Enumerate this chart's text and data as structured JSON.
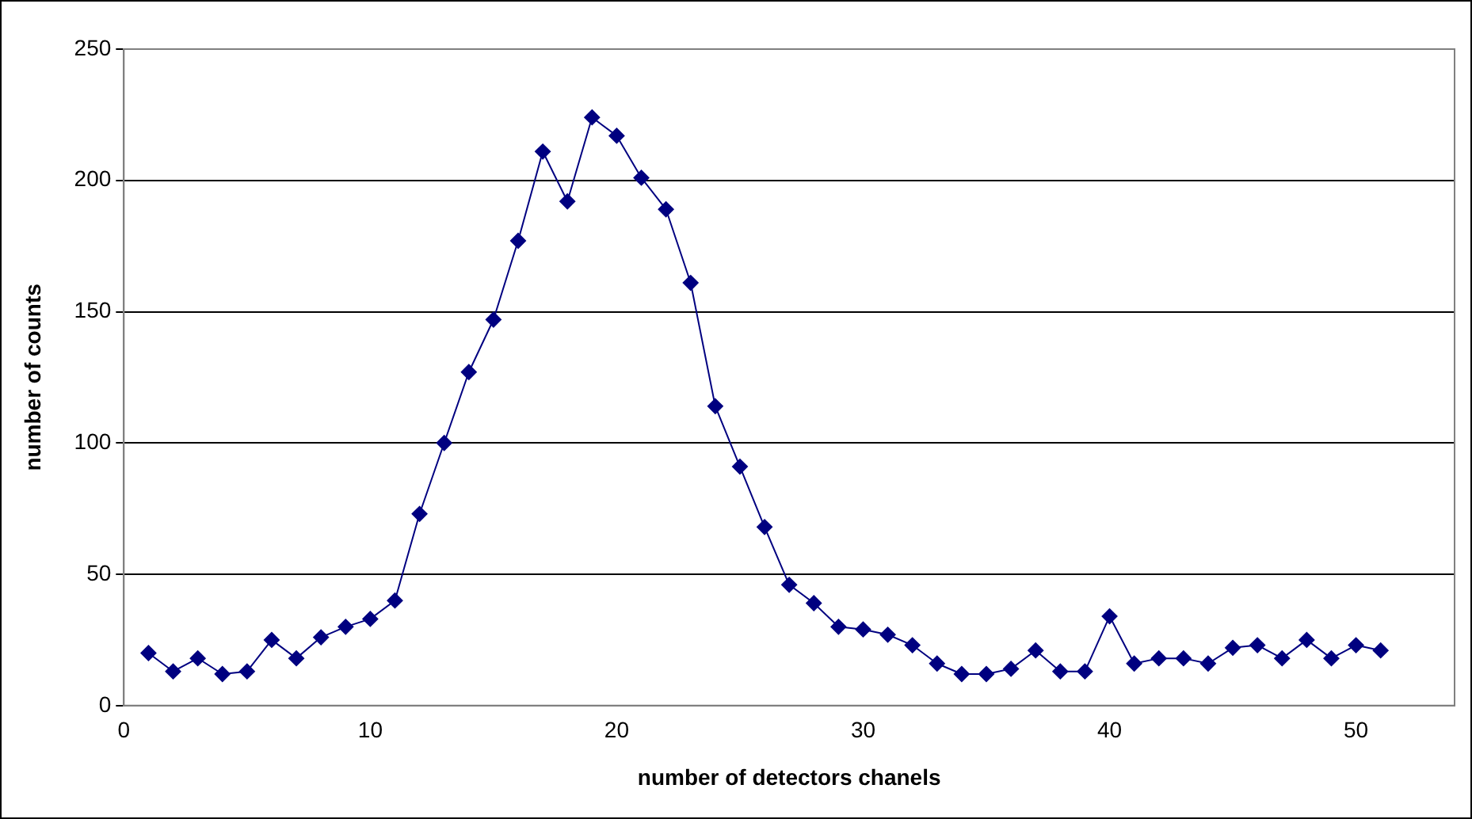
{
  "chart_data": {
    "type": "line",
    "xlabel": "number of detectors chanels",
    "ylabel": "number of counts",
    "x": [
      1,
      2,
      3,
      4,
      5,
      6,
      7,
      8,
      9,
      10,
      11,
      12,
      13,
      14,
      15,
      16,
      17,
      18,
      19,
      20,
      21,
      22,
      23,
      24,
      25,
      26,
      27,
      28,
      29,
      30,
      31,
      32,
      33,
      34,
      35,
      36,
      37,
      38,
      39,
      40,
      41,
      42,
      43,
      44,
      45,
      46,
      47,
      48,
      49,
      50,
      51
    ],
    "series": [
      {
        "color": "#000080",
        "values": [
          20,
          13,
          18,
          12,
          13,
          25,
          18,
          26,
          30,
          33,
          40,
          73,
          100,
          127,
          147,
          177,
          211,
          192,
          224,
          217,
          201,
          189,
          161,
          114,
          91,
          68,
          46,
          39,
          30,
          29,
          27,
          23,
          16,
          12,
          12,
          14,
          21,
          13,
          13,
          34,
          16,
          18,
          18,
          16,
          22,
          23,
          18,
          25,
          18,
          23,
          21
        ]
      }
    ],
    "xlim": [
      0,
      54
    ],
    "xticks": [
      0,
      10,
      20,
      30,
      40,
      50
    ],
    "ylim": [
      0,
      250
    ],
    "yticks": [
      0,
      50,
      100,
      150,
      200,
      250
    ],
    "grid": "y",
    "legend": false,
    "marker": "diamond",
    "line_style": "solid"
  }
}
